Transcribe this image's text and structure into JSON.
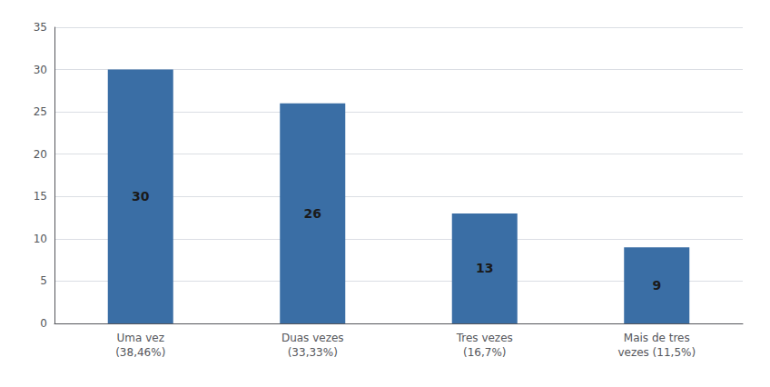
{
  "chart_data": {
    "type": "bar",
    "categories": [
      "Uma vez\n(38,46%)",
      "Duas vezes\n(33,33%)",
      "Tres vezes\n(16,7%)",
      "Mais de tres\nvezes (11,5%)"
    ],
    "values": [
      30,
      26,
      13,
      9
    ],
    "color": "#3A6EA5",
    "ylim": [
      0,
      35
    ],
    "yticks": [
      0,
      5,
      10,
      15,
      20,
      25,
      30,
      35
    ],
    "grid": true,
    "data_labels": true
  }
}
